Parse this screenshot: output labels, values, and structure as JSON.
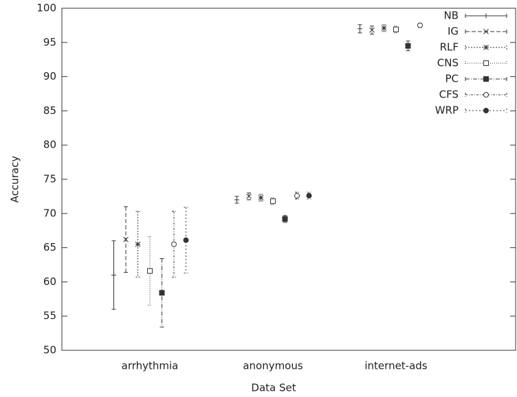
{
  "chart_data": {
    "type": "errorbar",
    "x_label": "Data Set",
    "y_label": "Accuracy",
    "categories": [
      "arrhythmia",
      "anonymous",
      "internet-ads"
    ],
    "ylim": [
      50,
      100
    ],
    "yticks": [
      50,
      55,
      60,
      65,
      70,
      75,
      80,
      85,
      90,
      95,
      100
    ],
    "legend": "top-right",
    "series": [
      {
        "name": "NB",
        "color": "#333333",
        "marker": "plus",
        "dash": "none",
        "values": [
          61,
          72,
          97.0
        ],
        "errors": [
          5,
          0.5,
          0.6
        ]
      },
      {
        "name": "IG",
        "color": "#333333",
        "marker": "cross",
        "dash": "6,3",
        "values": [
          66.2,
          72.5,
          96.8
        ],
        "errors": [
          4.8,
          0.5,
          0.6
        ]
      },
      {
        "name": "RLF",
        "color": "#333333",
        "marker": "star",
        "dash": "2,2",
        "values": [
          65.5,
          72.3,
          97.1
        ],
        "errors": [
          4.8,
          0.5,
          0.5
        ]
      },
      {
        "name": "CNS",
        "color": "#333333",
        "marker": "square-open",
        "dash": "1,2",
        "values": [
          61.6,
          71.8,
          96.9
        ],
        "errors": [
          5,
          0.5,
          0.5
        ]
      },
      {
        "name": "PC",
        "color": "#333333",
        "marker": "square-filled",
        "dash": "6,2,1,2",
        "values": [
          58.4,
          69.2,
          94.5
        ],
        "errors": [
          5,
          0.5,
          0.7
        ]
      },
      {
        "name": "CFS",
        "color": "#333333",
        "marker": "circle-open",
        "dash": "3,2,1,2",
        "values": [
          65.5,
          72.6,
          97.5
        ],
        "errors": [
          4.8,
          0.5,
          0.3
        ]
      },
      {
        "name": "WRP",
        "color": "#333333",
        "marker": "circle-filled",
        "dash": "2,3",
        "values": [
          66.1,
          72.6,
          null
        ],
        "errors": [
          4.8,
          0.5,
          null
        ]
      }
    ]
  }
}
